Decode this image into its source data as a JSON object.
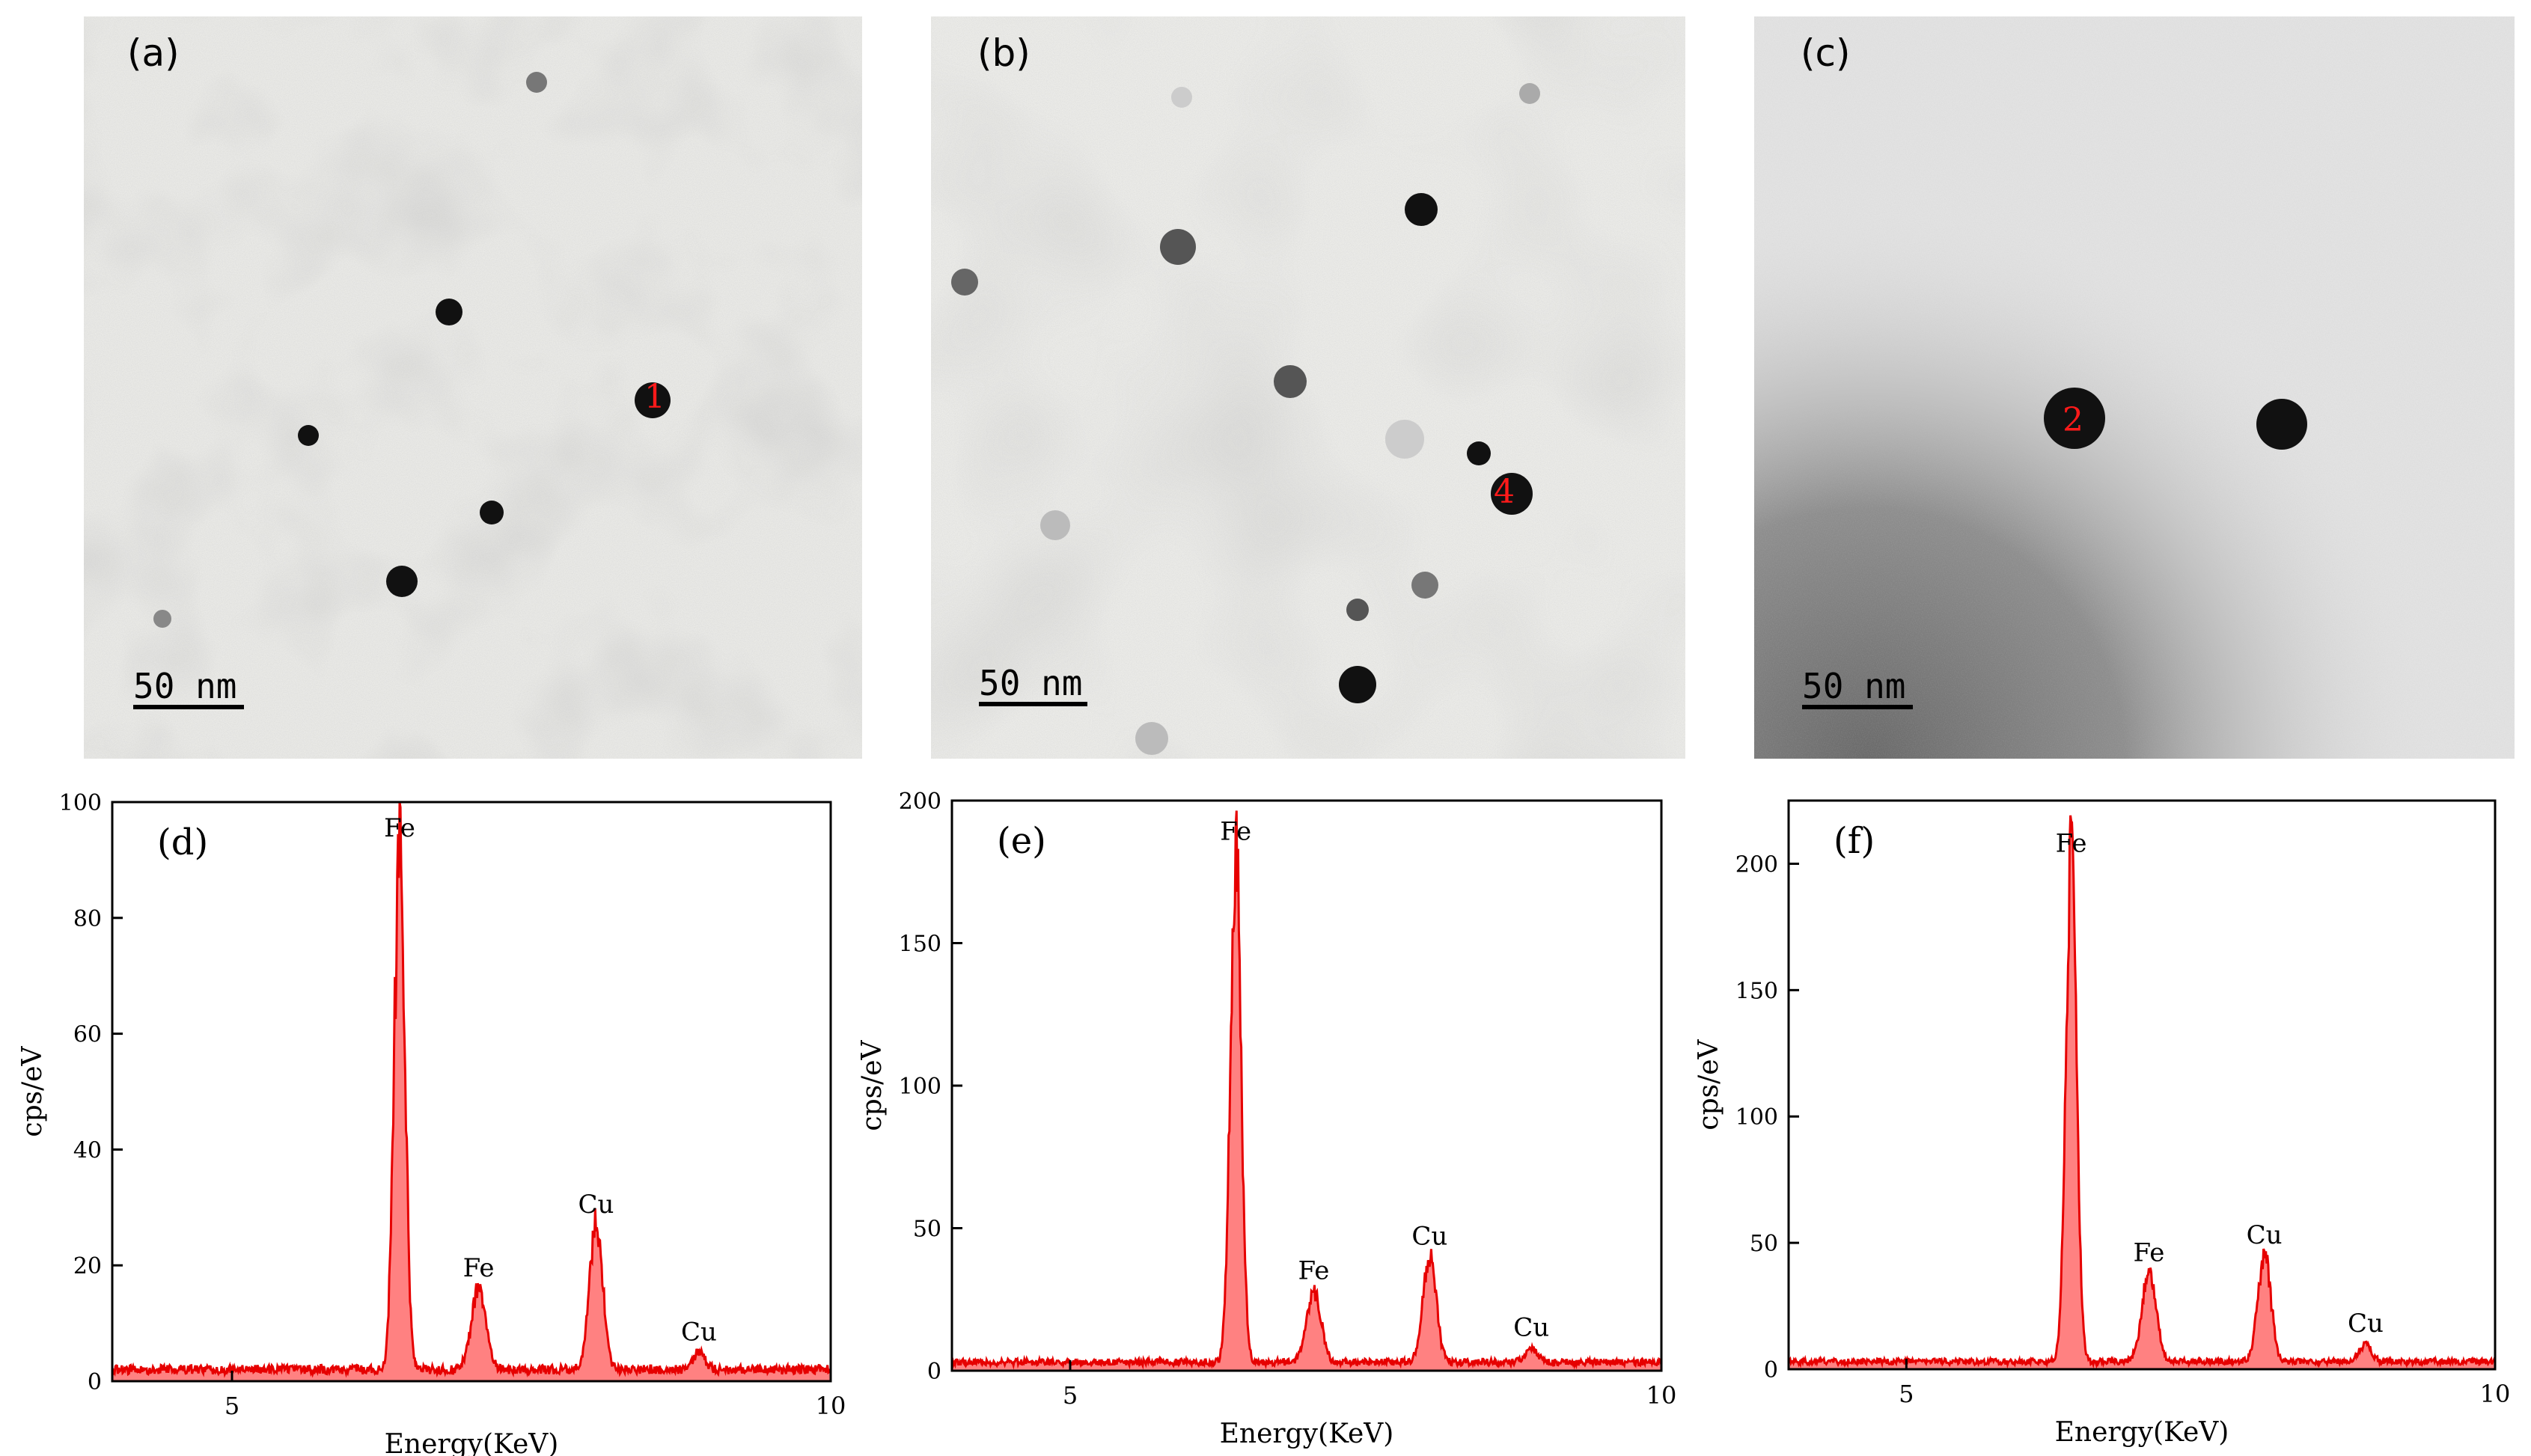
{
  "tem_panels": [
    {
      "id": "a",
      "label": "(a)",
      "scale_bar": "50 nm",
      "marker": "1",
      "bg": "#e9e9e6"
    },
    {
      "id": "b",
      "label": "(b)",
      "scale_bar": "50 nm",
      "marker": "4",
      "bg": "#ebebe8"
    },
    {
      "id": "c",
      "label": "(c)",
      "scale_bar": "50 nm",
      "marker": "2",
      "bg": "#e2e2e2"
    }
  ],
  "colors": {
    "spectrum": "#e60000",
    "fill": "#ff6b6b",
    "marker_text": "#ff1a1a"
  },
  "chart_data": [
    {
      "type": "area",
      "panel_label": "(d)",
      "xlabel": "Energy(KeV)",
      "ylabel": "cps/eV",
      "xlim": [
        4,
        10
      ],
      "ylim": [
        0,
        100
      ],
      "xticks": [
        5,
        10
      ],
      "yticks": [
        0,
        20,
        40,
        60,
        80,
        100
      ],
      "baseline": 2,
      "peaks": [
        {
          "x": 6.4,
          "y": 92,
          "label": "Fe"
        },
        {
          "x": 7.06,
          "y": 16,
          "label": "Fe"
        },
        {
          "x": 8.04,
          "y": 27,
          "label": "Cu"
        },
        {
          "x": 8.9,
          "y": 5,
          "label": "Cu"
        }
      ]
    },
    {
      "type": "area",
      "panel_label": "(e)",
      "xlabel": "Energy(KeV)",
      "ylabel": "cps/eV",
      "xlim": [
        4,
        10
      ],
      "ylim": [
        0,
        200
      ],
      "xticks": [
        5,
        10
      ],
      "yticks": [
        0,
        50,
        100,
        150,
        200
      ],
      "baseline": 3,
      "peaks": [
        {
          "x": 6.4,
          "y": 182,
          "label": "Fe"
        },
        {
          "x": 7.06,
          "y": 28,
          "label": "Fe"
        },
        {
          "x": 8.04,
          "y": 40,
          "label": "Cu"
        },
        {
          "x": 8.9,
          "y": 8,
          "label": "Cu"
        }
      ]
    },
    {
      "type": "area",
      "panel_label": "(f)",
      "xlabel": "Energy(KeV)",
      "ylabel": "cps/eV",
      "xlim": [
        4,
        10
      ],
      "ylim": [
        0,
        225
      ],
      "xticks": [
        5,
        10
      ],
      "yticks": [
        0,
        50,
        100,
        150,
        200
      ],
      "baseline": 3,
      "peaks": [
        {
          "x": 6.4,
          "y": 200,
          "label": "Fe"
        },
        {
          "x": 7.06,
          "y": 38,
          "label": "Fe"
        },
        {
          "x": 8.04,
          "y": 45,
          "label": "Cu"
        },
        {
          "x": 8.9,
          "y": 10,
          "label": "Cu"
        }
      ]
    }
  ]
}
